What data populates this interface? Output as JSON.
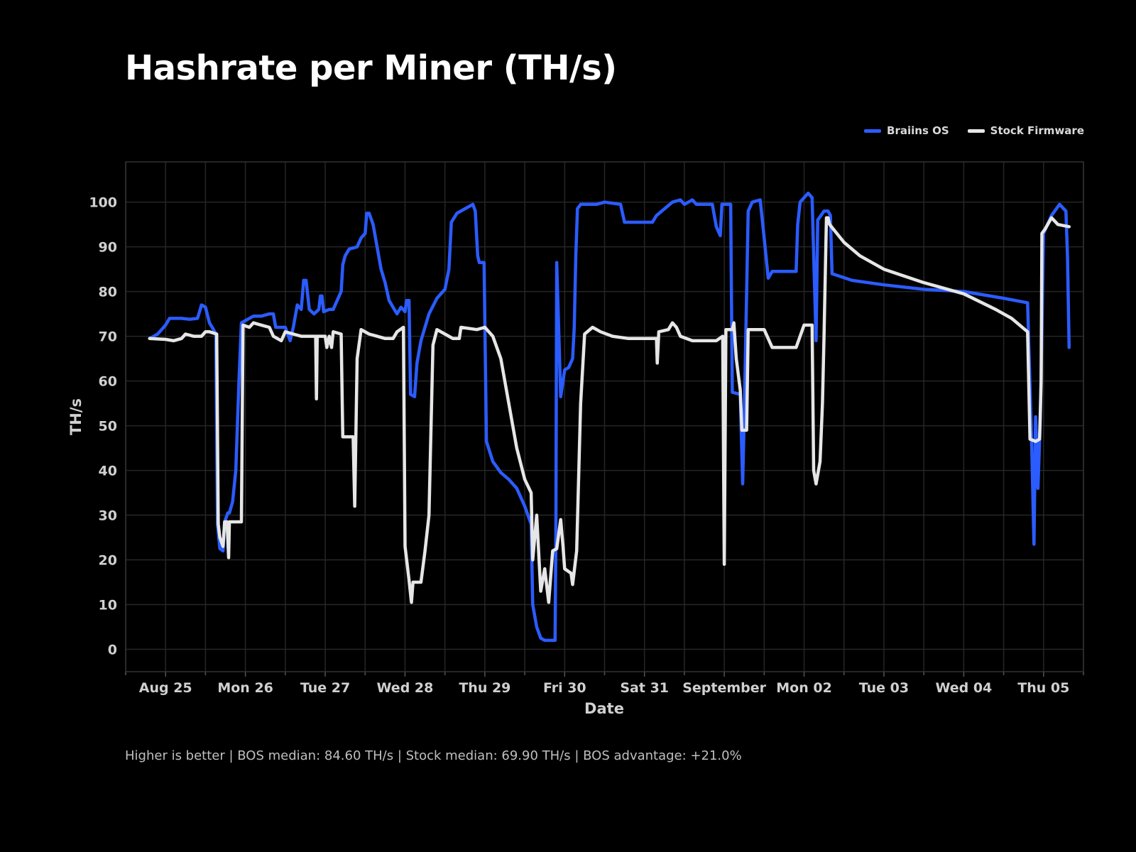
{
  "title": "Hashrate per Miner (TH/s)",
  "footnote": "Higher is better | BOS median: 84.60 TH/s | Stock median: 69.90 TH/s | BOS advantage: +21.0%",
  "colors": {
    "background": "#000000",
    "grid": "#262626",
    "braiins": "#2b5cff",
    "stock": "#e6e6e6"
  },
  "chart_data": {
    "type": "line",
    "title": "Hashrate per Miner (TH/s)",
    "xlabel": "Date",
    "ylabel": "TH/s",
    "xlim": [
      -0.5,
      11.5
    ],
    "ylim": [
      -5,
      109
    ],
    "yticks": [
      0,
      10,
      20,
      30,
      40,
      50,
      60,
      70,
      80,
      90,
      100
    ],
    "xticks": [
      {
        "value": 0,
        "label": "Aug 25"
      },
      {
        "value": 1,
        "label": "Mon 26"
      },
      {
        "value": 2,
        "label": "Tue 27"
      },
      {
        "value": 3,
        "label": "Wed 28"
      },
      {
        "value": 4,
        "label": "Thu 29"
      },
      {
        "value": 5,
        "label": "Fri 30"
      },
      {
        "value": 6,
        "label": "Sat 31"
      },
      {
        "value": 7,
        "label": "September"
      },
      {
        "value": 8,
        "label": "Mon 02"
      },
      {
        "value": 9,
        "label": "Tue 03"
      },
      {
        "value": 10,
        "label": "Wed 04"
      },
      {
        "value": 11,
        "label": "Thu 05"
      }
    ],
    "grid": true,
    "legend_position": "top-right",
    "series": [
      {
        "name": "Braiins OS",
        "color": "#2b5cff",
        "points": [
          [
            -0.2,
            69.5
          ],
          [
            -0.1,
            70.5
          ],
          [
            0.0,
            72.5
          ],
          [
            0.05,
            74
          ],
          [
            0.2,
            74
          ],
          [
            0.3,
            73.8
          ],
          [
            0.4,
            74
          ],
          [
            0.45,
            77
          ],
          [
            0.5,
            76.5
          ],
          [
            0.55,
            73
          ],
          [
            0.6,
            71.5
          ],
          [
            0.63,
            70.5
          ],
          [
            0.65,
            28
          ],
          [
            0.68,
            22.5
          ],
          [
            0.72,
            22
          ],
          [
            0.74,
            28.5
          ],
          [
            0.78,
            30.5
          ],
          [
            0.8,
            30.5
          ],
          [
            0.84,
            33
          ],
          [
            0.88,
            40
          ],
          [
            0.92,
            60
          ],
          [
            0.95,
            73
          ],
          [
            1.0,
            73.5
          ],
          [
            1.05,
            74
          ],
          [
            1.1,
            74.5
          ],
          [
            1.2,
            74.5
          ],
          [
            1.3,
            75
          ],
          [
            1.35,
            75
          ],
          [
            1.38,
            72
          ],
          [
            1.5,
            72
          ],
          [
            1.56,
            69
          ],
          [
            1.6,
            72
          ],
          [
            1.65,
            77
          ],
          [
            1.7,
            76
          ],
          [
            1.73,
            82.5
          ],
          [
            1.76,
            82.5
          ],
          [
            1.8,
            76
          ],
          [
            1.86,
            75
          ],
          [
            1.92,
            76
          ],
          [
            1.94,
            79
          ],
          [
            1.96,
            79
          ],
          [
            1.98,
            75.5
          ],
          [
            2.05,
            76
          ],
          [
            2.1,
            76
          ],
          [
            2.15,
            78
          ],
          [
            2.2,
            80
          ],
          [
            2.22,
            86
          ],
          [
            2.25,
            88
          ],
          [
            2.3,
            89.5
          ],
          [
            2.4,
            90
          ],
          [
            2.45,
            92
          ],
          [
            2.5,
            93
          ],
          [
            2.52,
            97.5
          ],
          [
            2.55,
            97.5
          ],
          [
            2.6,
            95
          ],
          [
            2.65,
            90
          ],
          [
            2.7,
            85
          ],
          [
            2.75,
            82
          ],
          [
            2.8,
            78
          ],
          [
            2.85,
            76.5
          ],
          [
            2.9,
            75
          ],
          [
            2.95,
            76.5
          ],
          [
            3.0,
            75.5
          ],
          [
            3.02,
            78
          ],
          [
            3.05,
            78
          ],
          [
            3.07,
            57
          ],
          [
            3.12,
            56.5
          ],
          [
            3.15,
            64
          ],
          [
            3.2,
            69
          ],
          [
            3.3,
            75
          ],
          [
            3.4,
            78.5
          ],
          [
            3.45,
            79.5
          ],
          [
            3.5,
            80.5
          ],
          [
            3.55,
            85
          ],
          [
            3.58,
            95.5
          ],
          [
            3.65,
            97.5
          ],
          [
            3.75,
            98.5
          ],
          [
            3.85,
            99.5
          ],
          [
            3.88,
            98
          ],
          [
            3.91,
            88
          ],
          [
            3.93,
            86.5
          ],
          [
            3.99,
            86.5
          ],
          [
            4.02,
            46.5
          ],
          [
            4.1,
            42
          ],
          [
            4.2,
            39.5
          ],
          [
            4.3,
            38
          ],
          [
            4.4,
            36
          ],
          [
            4.5,
            32
          ],
          [
            4.58,
            28
          ],
          [
            4.6,
            10
          ],
          [
            4.65,
            5
          ],
          [
            4.7,
            2.5
          ],
          [
            4.75,
            2
          ],
          [
            4.88,
            2
          ],
          [
            4.89,
            25
          ],
          [
            4.9,
            86.5
          ],
          [
            4.95,
            56.5
          ],
          [
            5.0,
            62.5
          ],
          [
            5.05,
            63
          ],
          [
            5.1,
            65
          ],
          [
            5.12,
            72
          ],
          [
            5.14,
            88
          ],
          [
            5.16,
            98.5
          ],
          [
            5.2,
            99.5
          ],
          [
            5.4,
            99.5
          ],
          [
            5.5,
            100
          ],
          [
            5.7,
            99.5
          ],
          [
            5.75,
            95.5
          ],
          [
            6.1,
            95.5
          ],
          [
            6.15,
            97
          ],
          [
            6.25,
            98.5
          ],
          [
            6.35,
            100
          ],
          [
            6.45,
            100.5
          ],
          [
            6.5,
            99.5
          ],
          [
            6.6,
            100.5
          ],
          [
            6.65,
            99.5
          ],
          [
            6.85,
            99.5
          ],
          [
            6.9,
            94.5
          ],
          [
            6.95,
            92.5
          ],
          [
            6.97,
            99.5
          ],
          [
            7.08,
            99.5
          ],
          [
            7.1,
            57.5
          ],
          [
            7.2,
            57
          ],
          [
            7.23,
            37
          ],
          [
            7.25,
            52
          ],
          [
            7.3,
            98
          ],
          [
            7.35,
            100
          ],
          [
            7.45,
            100.5
          ],
          [
            7.5,
            92
          ],
          [
            7.55,
            83
          ],
          [
            7.6,
            84.5
          ],
          [
            7.9,
            84.5
          ],
          [
            7.92,
            95
          ],
          [
            7.95,
            100
          ],
          [
            8.0,
            101
          ],
          [
            8.05,
            102
          ],
          [
            8.1,
            101
          ],
          [
            8.15,
            69
          ],
          [
            8.17,
            96
          ],
          [
            8.25,
            98
          ],
          [
            8.3,
            98
          ],
          [
            8.33,
            97
          ],
          [
            8.35,
            84
          ],
          [
            8.6,
            82.5
          ],
          [
            9.0,
            81.5
          ],
          [
            9.5,
            80.5
          ],
          [
            10.0,
            80
          ],
          [
            10.5,
            78.5
          ],
          [
            10.8,
            77.5
          ],
          [
            10.85,
            47
          ],
          [
            10.88,
            23.5
          ],
          [
            10.9,
            52
          ],
          [
            10.93,
            36
          ],
          [
            10.96,
            52
          ],
          [
            11.0,
            93
          ],
          [
            11.1,
            97
          ],
          [
            11.2,
            99.5
          ],
          [
            11.28,
            98
          ],
          [
            11.3,
            88
          ],
          [
            11.32,
            67.5
          ]
        ]
      },
      {
        "name": "Stock Firmware",
        "color": "#e6e6e6",
        "points": [
          [
            -0.2,
            69.5
          ],
          [
            0.0,
            69.3
          ],
          [
            0.1,
            69
          ],
          [
            0.2,
            69.5
          ],
          [
            0.25,
            70.5
          ],
          [
            0.35,
            70
          ],
          [
            0.45,
            70
          ],
          [
            0.5,
            71
          ],
          [
            0.55,
            71
          ],
          [
            0.64,
            70.5
          ],
          [
            0.66,
            28
          ],
          [
            0.68,
            25
          ],
          [
            0.72,
            23
          ],
          [
            0.74,
            28.5
          ],
          [
            0.77,
            28.5
          ],
          [
            0.79,
            20.5
          ],
          [
            0.8,
            28.5
          ],
          [
            0.95,
            28.5
          ],
          [
            0.97,
            72.5
          ],
          [
            1.05,
            72
          ],
          [
            1.1,
            73
          ],
          [
            1.2,
            72.5
          ],
          [
            1.3,
            72
          ],
          [
            1.35,
            70
          ],
          [
            1.45,
            69
          ],
          [
            1.5,
            71
          ],
          [
            1.6,
            70.5
          ],
          [
            1.7,
            70
          ],
          [
            1.8,
            70
          ],
          [
            1.88,
            70
          ],
          [
            1.89,
            56
          ],
          [
            1.9,
            70
          ],
          [
            2.0,
            70
          ],
          [
            2.02,
            67.5
          ],
          [
            2.05,
            70
          ],
          [
            2.08,
            67.5
          ],
          [
            2.1,
            71
          ],
          [
            2.2,
            70.5
          ],
          [
            2.22,
            47.5
          ],
          [
            2.35,
            47.5
          ],
          [
            2.37,
            32
          ],
          [
            2.4,
            65
          ],
          [
            2.45,
            71.5
          ],
          [
            2.55,
            70.5
          ],
          [
            2.65,
            70
          ],
          [
            2.75,
            69.5
          ],
          [
            2.85,
            69.5
          ],
          [
            2.9,
            71
          ],
          [
            2.98,
            72
          ],
          [
            3.0,
            23
          ],
          [
            3.05,
            15.5
          ],
          [
            3.08,
            10.5
          ],
          [
            3.1,
            15
          ],
          [
            3.2,
            15
          ],
          [
            3.25,
            22
          ],
          [
            3.3,
            30
          ],
          [
            3.32,
            45
          ],
          [
            3.35,
            68
          ],
          [
            3.4,
            71.5
          ],
          [
            3.5,
            70.5
          ],
          [
            3.6,
            69.5
          ],
          [
            3.68,
            69.5
          ],
          [
            3.7,
            72
          ],
          [
            3.9,
            71.5
          ],
          [
            4.0,
            72
          ],
          [
            4.1,
            70
          ],
          [
            4.2,
            65
          ],
          [
            4.3,
            55
          ],
          [
            4.4,
            45
          ],
          [
            4.5,
            38
          ],
          [
            4.58,
            35
          ],
          [
            4.6,
            20
          ],
          [
            4.65,
            30
          ],
          [
            4.7,
            13
          ],
          [
            4.75,
            18
          ],
          [
            4.8,
            10.5
          ],
          [
            4.85,
            22
          ],
          [
            4.9,
            22.5
          ],
          [
            4.95,
            29
          ],
          [
            4.98,
            23
          ],
          [
            5.0,
            18
          ],
          [
            5.08,
            17
          ],
          [
            5.1,
            14.5
          ],
          [
            5.15,
            22
          ],
          [
            5.2,
            55
          ],
          [
            5.25,
            70.5
          ],
          [
            5.35,
            72
          ],
          [
            5.45,
            71
          ],
          [
            5.6,
            70
          ],
          [
            5.8,
            69.5
          ],
          [
            6.15,
            69.5
          ],
          [
            6.16,
            64
          ],
          [
            6.18,
            71
          ],
          [
            6.3,
            71.5
          ],
          [
            6.35,
            73
          ],
          [
            6.4,
            72
          ],
          [
            6.45,
            70
          ],
          [
            6.6,
            69
          ],
          [
            6.9,
            69
          ],
          [
            6.98,
            70
          ],
          [
            7.0,
            19
          ],
          [
            7.02,
            71.5
          ],
          [
            7.1,
            71.5
          ],
          [
            7.12,
            73
          ],
          [
            7.15,
            65
          ],
          [
            7.2,
            58
          ],
          [
            7.22,
            49
          ],
          [
            7.28,
            49
          ],
          [
            7.3,
            71.5
          ],
          [
            7.5,
            71.5
          ],
          [
            7.6,
            67.5
          ],
          [
            7.9,
            67.5
          ],
          [
            7.95,
            70
          ],
          [
            8.0,
            72.5
          ],
          [
            8.1,
            72.5
          ],
          [
            8.12,
            40
          ],
          [
            8.15,
            37
          ],
          [
            8.2,
            42
          ],
          [
            8.23,
            55
          ],
          [
            8.25,
            70
          ],
          [
            8.28,
            96.5
          ],
          [
            8.3,
            96.5
          ],
          [
            8.32,
            95
          ],
          [
            8.5,
            91
          ],
          [
            8.7,
            88
          ],
          [
            9.0,
            85
          ],
          [
            9.5,
            82
          ],
          [
            10.0,
            79.5
          ],
          [
            10.4,
            76
          ],
          [
            10.6,
            74
          ],
          [
            10.8,
            71
          ],
          [
            10.83,
            47
          ],
          [
            10.9,
            46.5
          ],
          [
            10.95,
            47
          ],
          [
            10.97,
            60
          ],
          [
            10.98,
            93
          ],
          [
            11.02,
            94
          ],
          [
            11.1,
            96.5
          ],
          [
            11.18,
            95
          ],
          [
            11.32,
            94.5
          ]
        ]
      }
    ]
  }
}
